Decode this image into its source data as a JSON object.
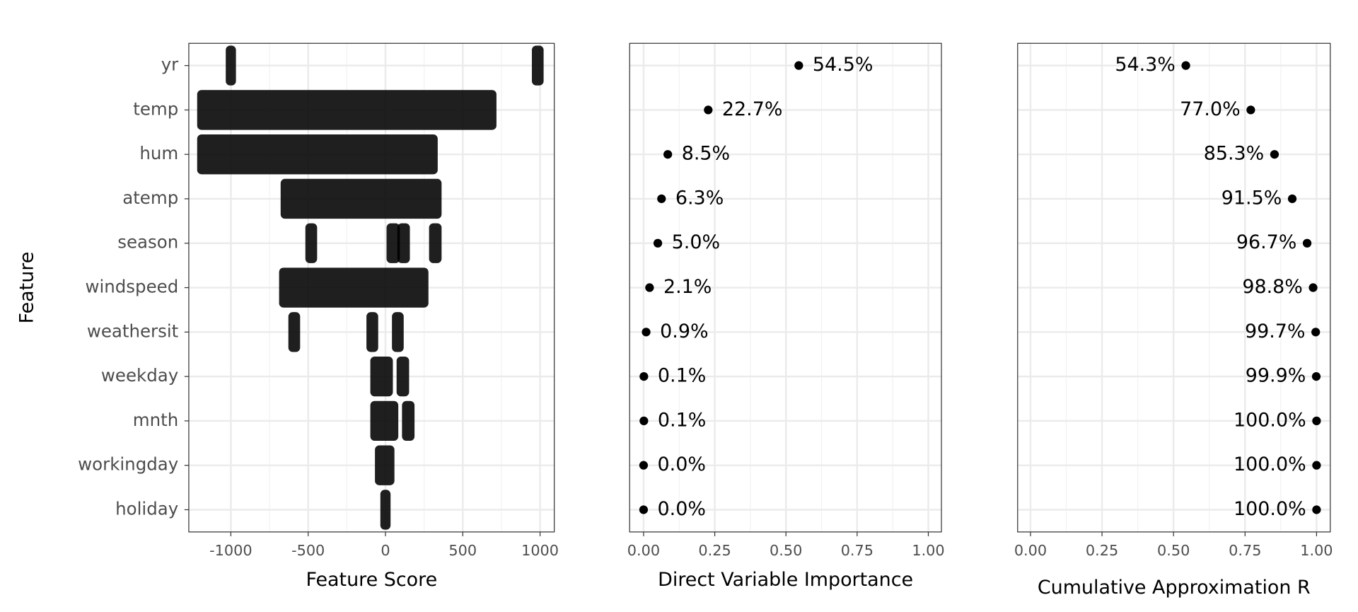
{
  "chart_data": [
    {
      "type": "strip",
      "xlabel": "Feature Score",
      "ylabel": "Feature",
      "color": "#000000",
      "grid": true,
      "categories": [
        "yr",
        "temp",
        "hum",
        "atemp",
        "season",
        "windspeed",
        "weathersit",
        "weekday",
        "mnth",
        "workingday",
        "holiday"
      ],
      "ranges": [
        [
          [
            -1005,
            -995
          ],
          [
            975,
            995
          ]
        ],
        [
          [
            -1190,
            690
          ]
        ],
        [
          [
            -1190,
            310
          ]
        ],
        [
          [
            -650,
            335
          ]
        ],
        [
          [
            -490,
            -470
          ],
          [
            35,
            65
          ],
          [
            105,
            130
          ],
          [
            310,
            335
          ]
        ],
        [
          [
            -660,
            250
          ]
        ],
        [
          [
            -600,
            -580
          ],
          [
            -95,
            -75
          ],
          [
            70,
            90
          ]
        ],
        [
          [
            -70,
            20
          ],
          [
            100,
            125
          ]
        ],
        [
          [
            -70,
            55
          ],
          [
            135,
            160
          ]
        ],
        [
          [
            -40,
            30
          ]
        ],
        [
          [
            -5,
            5
          ]
        ]
      ],
      "xlim": [
        -1272,
        1092
      ],
      "xticks": [
        -1000,
        -500,
        0,
        500,
        1000
      ]
    },
    {
      "type": "dot",
      "xlabel": "Direct Variable Importance",
      "color": "#000000",
      "grid": true,
      "values": [
        0.545,
        0.227,
        0.085,
        0.063,
        0.05,
        0.021,
        0.009,
        0.001,
        0.001,
        0.0,
        0.0
      ],
      "value_labels": [
        "54.5%",
        "22.7%",
        "8.5%",
        "6.3%",
        "5.0%",
        "2.1%",
        "0.9%",
        "0.1%",
        "0.1%",
        "0.0%",
        "0.0%"
      ],
      "xlim": [
        -0.049,
        1.046
      ],
      "xticks": [
        {
          "value": 0,
          "label": "0.00"
        },
        {
          "value": 0.25,
          "label": "0.25"
        },
        {
          "value": 0.5,
          "label": "0.50"
        },
        {
          "value": 0.75,
          "label": "0.75"
        },
        {
          "value": 1,
          "label": "1.00"
        }
      ]
    },
    {
      "type": "dot",
      "xlabel": "Cumulative Approximation R",
      "color": "#000000",
      "grid": true,
      "values": [
        0.543,
        0.77,
        0.853,
        0.915,
        0.967,
        0.988,
        0.997,
        0.999,
        1.0,
        1.0,
        1.0
      ],
      "value_labels": [
        "54.3%",
        "77.0%",
        "85.3%",
        "91.5%",
        "96.7%",
        "98.8%",
        "99.7%",
        "99.9%",
        "100.0%",
        "100.0%",
        "100.0%"
      ],
      "xlim": [
        -0.045,
        1.048
      ],
      "xticks": [
        {
          "value": 0,
          "label": "0.00"
        },
        {
          "value": 0.25,
          "label": "0.25"
        },
        {
          "value": 0.5,
          "label": "0.50"
        },
        {
          "value": 0.75,
          "label": "0.75"
        },
        {
          "value": 1,
          "label": "1.00"
        }
      ]
    }
  ]
}
